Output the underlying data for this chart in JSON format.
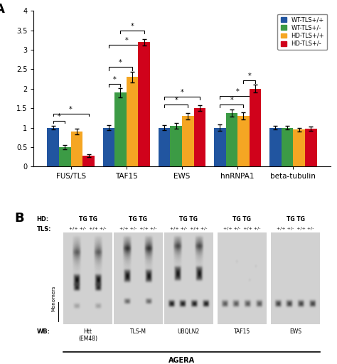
{
  "bar_groups": [
    "FUS/TLS",
    "TAF15",
    "EWS",
    "hnRNPA1",
    "beta-tubulin"
  ],
  "series": [
    "WT-TLS+/+",
    "WT-TLS+/-",
    "HD-TLS+/+",
    "HD-TLS+/-"
  ],
  "colors": [
    "#2155A0",
    "#3C9B45",
    "#F5A623",
    "#D0021B"
  ],
  "values": [
    [
      1.0,
      0.5,
      0.9,
      0.28
    ],
    [
      1.0,
      1.9,
      2.3,
      3.2
    ],
    [
      1.0,
      1.05,
      1.3,
      1.5
    ],
    [
      1.0,
      1.37,
      1.3,
      2.0
    ],
    [
      1.0,
      1.0,
      0.95,
      0.97
    ]
  ],
  "errors": [
    [
      0.05,
      0.05,
      0.07,
      0.04
    ],
    [
      0.06,
      0.12,
      0.13,
      0.08
    ],
    [
      0.07,
      0.07,
      0.08,
      0.07
    ],
    [
      0.08,
      0.09,
      0.09,
      0.1
    ],
    [
      0.05,
      0.05,
      0.05,
      0.05
    ]
  ],
  "ylim": [
    0,
    4.0
  ],
  "yticks": [
    0,
    0.5,
    1.0,
    1.5,
    2.0,
    2.5,
    3.0,
    3.5,
    4.0
  ],
  "wb_names": [
    "Htt\n(EM48)",
    "TLS-M",
    "UBQLN2",
    "TAF15",
    "EWS"
  ],
  "background_color": "#FFFFFF",
  "fig_width": 4.74,
  "fig_height": 5.12
}
